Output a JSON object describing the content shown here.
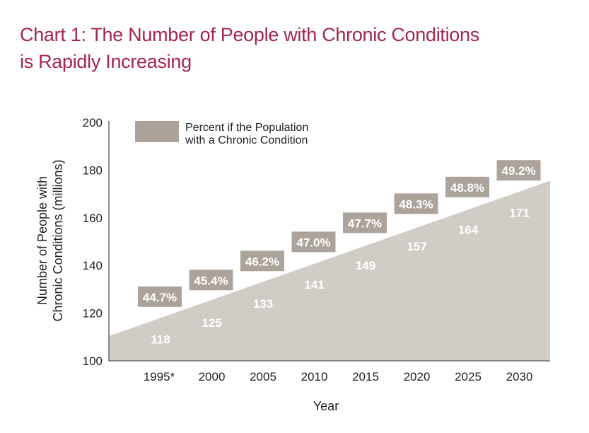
{
  "title": {
    "line1": "Chart 1: The Number of People with Chronic Conditions",
    "line2": "is Rapidly Increasing"
  },
  "colors": {
    "title": "#a3264f",
    "area": "#d1ccc6",
    "percent_box": "#aca39b",
    "axis": "#555555",
    "text": "#222222",
    "label_on_fill": "#ffffff"
  },
  "chart_data": {
    "type": "area",
    "title": "Chart 1: The Number of People with Chronic Conditions is Rapidly Increasing",
    "xlabel": "Year",
    "ylabel_lines": [
      "Number of People with",
      "Chronic Conditions (millions)"
    ],
    "ylabel": "Number of People with Chronic Conditions (millions)",
    "ylim": [
      100,
      200
    ],
    "yticks": [
      100,
      120,
      140,
      160,
      180,
      200
    ],
    "categories": [
      "1995*",
      "2000",
      "2005",
      "2010",
      "2015",
      "2020",
      "2025",
      "2030"
    ],
    "grid": false,
    "legend": {
      "placement": "top-left",
      "entries": [
        {
          "label_lines": [
            "Percent if the Population",
            "with a Chronic Condition"
          ],
          "label": "Percent if the Population with a Chronic Condition",
          "color": "#aca39b"
        }
      ]
    },
    "series": [
      {
        "name": "Number of People with Chronic Conditions (millions)",
        "type": "area",
        "values": [
          118,
          125,
          133,
          141,
          149,
          157,
          164,
          171
        ],
        "labels": [
          "118",
          "125",
          "133",
          "141",
          "149",
          "157",
          "164",
          "171"
        ]
      },
      {
        "name": "Percent if the Population with a Chronic Condition",
        "type": "label-boxes",
        "values": [
          44.7,
          45.4,
          46.2,
          47.0,
          47.7,
          48.3,
          48.8,
          49.2
        ],
        "labels": [
          "44.7%",
          "45.4%",
          "46.2%",
          "47.0%",
          "47.7%",
          "48.3%",
          "48.8%",
          "49.2%"
        ]
      }
    ]
  }
}
